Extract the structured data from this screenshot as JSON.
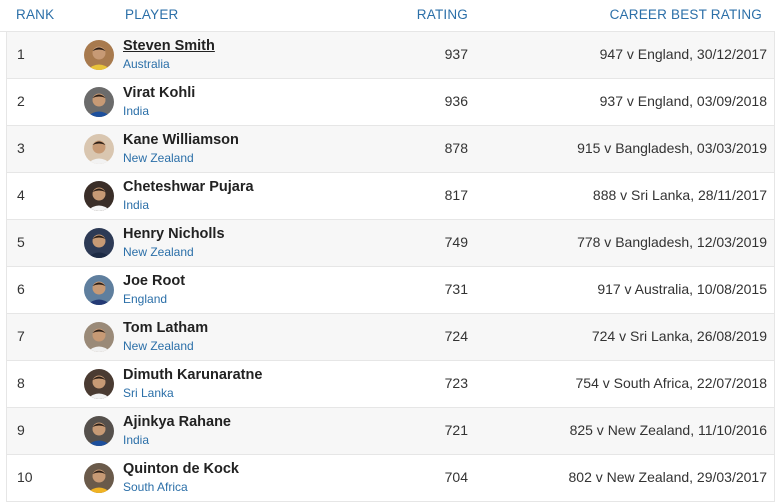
{
  "header": {
    "rank": "RANK",
    "player": "PLAYER",
    "rating": "RATING",
    "career_best": "CAREER BEST RATING"
  },
  "rows": [
    {
      "rank": "1",
      "name": "Steven Smith",
      "country": "Australia",
      "rating": "937",
      "best": "947 v England, 30/12/2017",
      "avatar_bg": "#a87a4e",
      "shirt": "#e8c33a"
    },
    {
      "rank": "2",
      "name": "Virat Kohli",
      "country": "India",
      "rating": "936",
      "best": "937 v England, 03/09/2018",
      "avatar_bg": "#6b6b6b",
      "shirt": "#1d4f9c"
    },
    {
      "rank": "3",
      "name": "Kane Williamson",
      "country": "New Zealand",
      "rating": "878",
      "best": "915 v Bangladesh, 03/03/2019",
      "avatar_bg": "#d9c6b0",
      "shirt": "#f2f2f2"
    },
    {
      "rank": "4",
      "name": "Cheteshwar Pujara",
      "country": "India",
      "rating": "817",
      "best": "888 v Sri Lanka, 28/11/2017",
      "avatar_bg": "#3a2e28",
      "shirt": "#f4f4f4"
    },
    {
      "rank": "5",
      "name": "Henry Nicholls",
      "country": "New Zealand",
      "rating": "749",
      "best": "778 v Bangladesh, 12/03/2019",
      "avatar_bg": "#2d3a55",
      "shirt": "#1c2a44"
    },
    {
      "rank": "6",
      "name": "Joe Root",
      "country": "England",
      "rating": "731",
      "best": "917 v Australia, 10/08/2015",
      "avatar_bg": "#5f7f9e",
      "shirt": "#243a75"
    },
    {
      "rank": "7",
      "name": "Tom Latham",
      "country": "New Zealand",
      "rating": "724",
      "best": "724 v Sri Lanka, 26/08/2019",
      "avatar_bg": "#9a8a78",
      "shirt": "#f0f0f0"
    },
    {
      "rank": "8",
      "name": "Dimuth Karunaratne",
      "country": "Sri Lanka",
      "rating": "723",
      "best": "754 v South Africa, 22/07/2018",
      "avatar_bg": "#4a3b32",
      "shirt": "#f2f2f2"
    },
    {
      "rank": "9",
      "name": "Ajinkya Rahane",
      "country": "India",
      "rating": "721",
      "best": "825 v New Zealand, 11/10/2016",
      "avatar_bg": "#55504c",
      "shirt": "#1d4f9c"
    },
    {
      "rank": "10",
      "name": "Quinton de Kock",
      "country": "South Africa",
      "rating": "704",
      "best": "802 v New Zealand, 29/03/2017",
      "avatar_bg": "#6a5a4a",
      "shirt": "#f0b323"
    }
  ],
  "colors": {
    "link_blue": "#2b6fa8",
    "row_alt": "#f7f7f7",
    "border": "#e6e6e6"
  }
}
